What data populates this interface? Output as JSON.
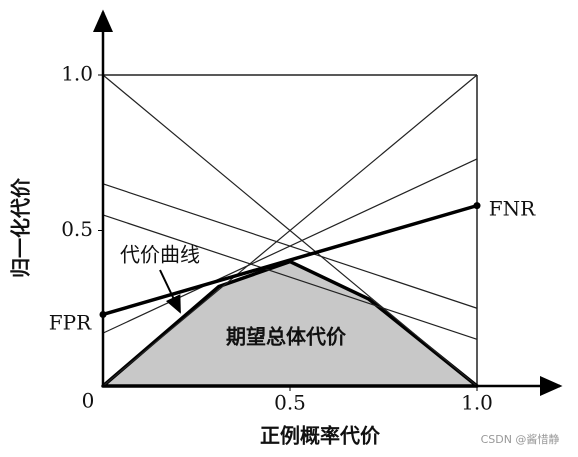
{
  "chart_data": {
    "type": "line",
    "x_label": "正例概率代价",
    "y_label": "归一化代价",
    "origin_label": "0",
    "x": [
      0,
      1
    ],
    "xlim": [
      0,
      1
    ],
    "ylim": [
      0,
      1
    ],
    "xticks": [
      0.5,
      {
        "value": 1,
        "label": "1.0"
      }
    ],
    "yticks": [
      0.5,
      {
        "value": 1,
        "label": "1.0"
      }
    ],
    "series": [
      {
        "color": "#222",
        "values": [
          1,
          0
        ]
      },
      {
        "color": "#222",
        "values": [
          0,
          1
        ]
      },
      {
        "color": "#222",
        "values": [
          0.65,
          0.25
        ]
      },
      {
        "color": "#222",
        "values": [
          0.55,
          0.15
        ]
      },
      {
        "color": "#222",
        "values": [
          0.17,
          0.73
        ]
      },
      {
        "color": "#000",
        "width": 3.5,
        "markers": true,
        "values": [
          0.23,
          0.58
        ]
      }
    ],
    "area": {
      "color": "#c8c8c8",
      "x": [
        0,
        0.31,
        0.5,
        0.71,
        1
      ],
      "values": [
        0,
        0.32,
        0.4,
        0.28,
        0
      ]
    },
    "curve_label": "代价曲线",
    "area_label": "期望总体代价",
    "fpr_label": "FPR",
    "fnr_label": "FNR",
    "watermark": "CSDN @酱惜静"
  }
}
